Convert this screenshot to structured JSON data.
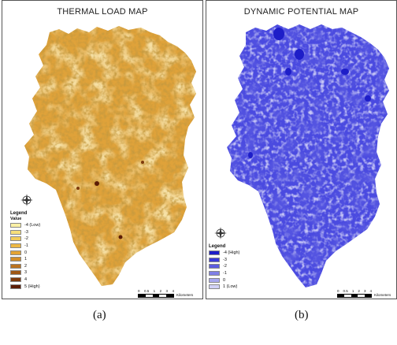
{
  "panels": [
    {
      "title": "THERMAL LOAD MAP",
      "legend": {
        "title": "Legend",
        "subtitle": "Value",
        "items": [
          {
            "label": "-4 (Low)",
            "color": "#fbf0a6"
          },
          {
            "label": "-3",
            "color": "#f6de7a"
          },
          {
            "label": "-2",
            "color": "#f2cc5a"
          },
          {
            "label": "-1",
            "color": "#edb844"
          },
          {
            "label": "0",
            "color": "#e3a334"
          },
          {
            "label": "1",
            "color": "#d28e29"
          },
          {
            "label": "2",
            "color": "#bb7320"
          },
          {
            "label": "3",
            "color": "#9e5716"
          },
          {
            "label": "4",
            "color": "#7e3a0d"
          },
          {
            "label": "5 (High)",
            "color": "#5c1d06"
          }
        ]
      },
      "scale": {
        "labels": [
          "0",
          "0.5",
          "1",
          "2",
          "3",
          "4"
        ],
        "unit": "Kilometers"
      },
      "base_color": "#dfa23a",
      "north_icon": "compass-rose-icon"
    },
    {
      "title": "DYNAMIC POTENTIAL MAP",
      "legend": {
        "title": "Legend",
        "items": [
          {
            "label": "-4 (High)",
            "color": "#1e1ec8"
          },
          {
            "label": "-3",
            "color": "#3a3ad8"
          },
          {
            "label": "-2",
            "color": "#5c5ce0"
          },
          {
            "label": "-1",
            "color": "#8080e6"
          },
          {
            "label": "0",
            "color": "#a8a8ee"
          },
          {
            "label": "1 (Low)",
            "color": "#d2d2f6"
          }
        ]
      },
      "scale": {
        "labels": [
          "0",
          "0.5",
          "1",
          "2",
          "3",
          "4"
        ],
        "unit": "Kilometers"
      },
      "base_color": "#4a4ae0",
      "north_icon": "compass-rose-icon"
    }
  ],
  "captions": [
    "(a)",
    "(b)"
  ]
}
